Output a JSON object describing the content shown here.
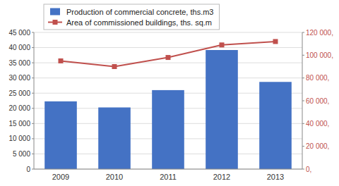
{
  "chart_data": {
    "type": "bar",
    "categories": [
      "2009",
      "2010",
      "2011",
      "2012",
      "2013"
    ],
    "series": [
      {
        "name": "Production of commercial concrete, ths.m3",
        "type": "bar",
        "color": "#4472C4",
        "values": [
          22300,
          20300,
          26000,
          39200,
          28700
        ]
      },
      {
        "name": "Area of commissioned buildings, ths. sq.m",
        "type": "line",
        "color": "#C0504D",
        "marker": "square",
        "axis": "y2",
        "values": [
          95000,
          90000,
          98000,
          109000,
          112000
        ]
      }
    ],
    "ylim": [
      0,
      45000
    ],
    "yticks": [
      0,
      {
        "value": 5000,
        "label": "5 000"
      },
      {
        "value": 10000,
        "label": "10 000"
      },
      {
        "value": 15000,
        "label": "15 000"
      },
      {
        "value": 20000,
        "label": "20 000"
      },
      {
        "value": 25000,
        "label": "25 000"
      },
      {
        "value": 30000,
        "label": "30 000"
      },
      {
        "value": 35000,
        "label": "35 000"
      },
      {
        "value": 40000,
        "label": "40 000"
      },
      {
        "value": 45000,
        "label": "45 000"
      }
    ],
    "y2lim": [
      0,
      120000
    ],
    "y2ticks": [
      {
        "value": 0,
        "label": "0,"
      },
      {
        "value": 20000,
        "label": "20 000,"
      },
      {
        "value": 40000,
        "label": "40 000,"
      },
      {
        "value": 60000,
        "label": "60 000,"
      },
      {
        "value": 80000,
        "label": "80 000,"
      },
      {
        "value": 100000,
        "label": "100 000,"
      },
      {
        "value": 120000,
        "label": "120 000,"
      }
    ],
    "grid": true,
    "legend": "top"
  }
}
